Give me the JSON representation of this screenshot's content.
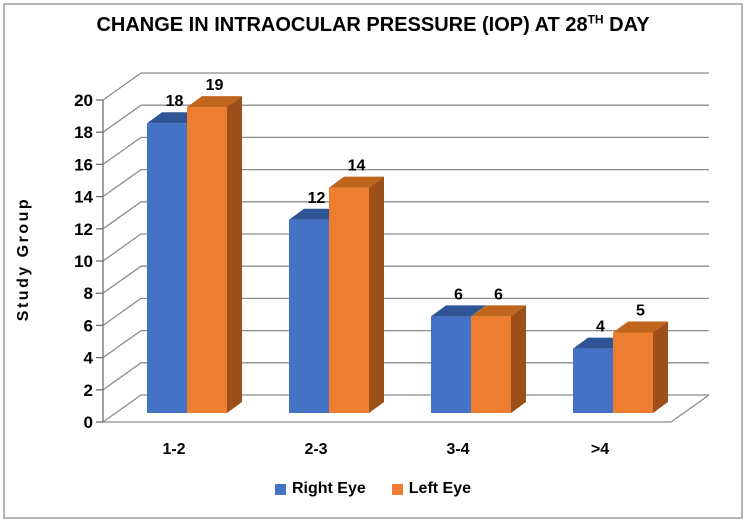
{
  "title": {
    "main": "CHANGE IN INTRAOCULAR PRESSURE (IOP) AT 28",
    "superscript": "TH",
    "tail": " DAY"
  },
  "chart_data": {
    "type": "bar",
    "projection": "3d",
    "title": "CHANGE IN INTRAOCULAR PRESSURE (IOP) AT 28TH DAY",
    "xlabel": "",
    "ylabel": "Study  Group",
    "categories": [
      "1-2",
      "2-3",
      "3-4",
      ">4"
    ],
    "series": [
      {
        "name": "Right Eye",
        "values": [
          18,
          12,
          6,
          4
        ],
        "color_front": "#4472C4",
        "color_top": "#2F5597",
        "color_side": "#24447E"
      },
      {
        "name": "Left Eye",
        "values": [
          19,
          14,
          6,
          5
        ],
        "color_front": "#ED7D31",
        "color_top": "#C0651E",
        "color_side": "#9C4F18"
      }
    ],
    "data_labels": [
      [
        "18",
        "12",
        "6",
        "4"
      ],
      [
        "19",
        "14",
        "6",
        "5"
      ]
    ],
    "ylim": [
      0,
      20
    ],
    "ytick_step": 2,
    "yticks": [
      0,
      2,
      4,
      6,
      8,
      10,
      12,
      14,
      16,
      18,
      20
    ],
    "grid": true,
    "legend_position": "bottom",
    "gridline_color": "#8C8C8C",
    "tick_color": "#6E6E6E",
    "text_color": "#000000"
  }
}
